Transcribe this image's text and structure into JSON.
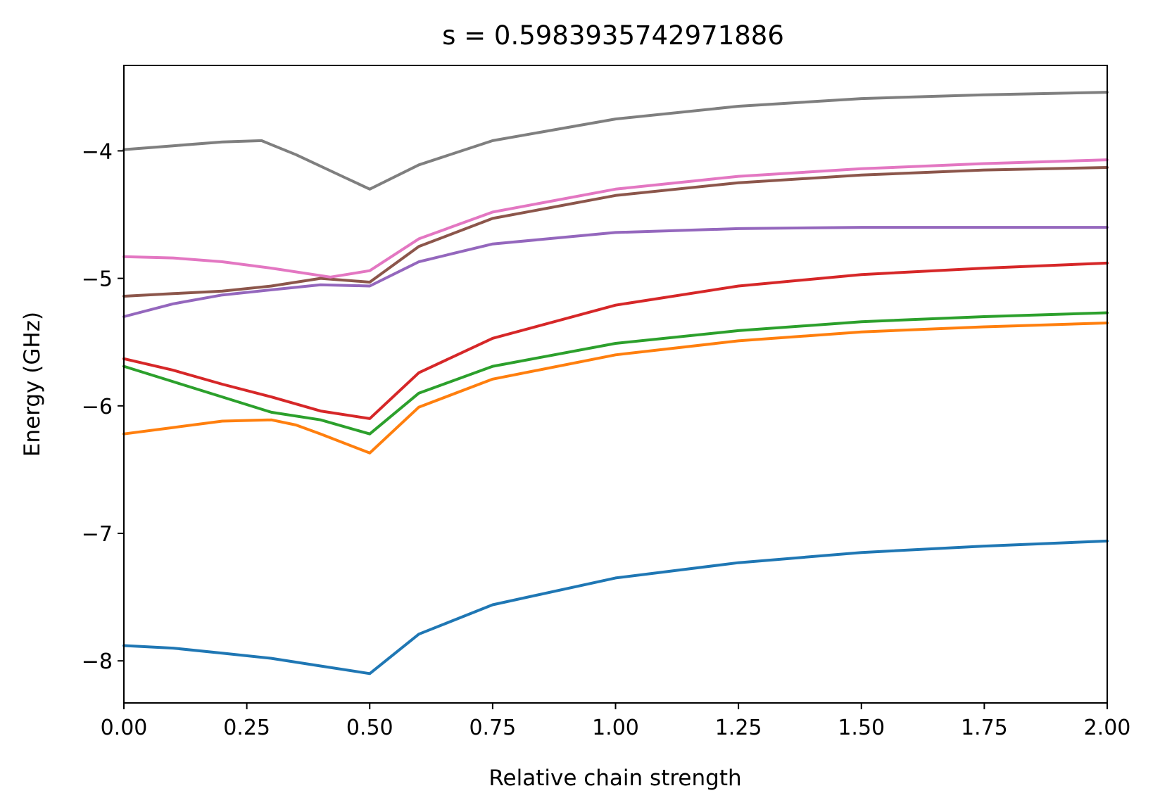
{
  "chart_data": {
    "type": "line",
    "title": "s = 0.5983935742971886",
    "xlabel": "Relative chain strength",
    "ylabel": "Energy (GHz)",
    "xlim": [
      0,
      2
    ],
    "ylim": [
      -8.33,
      -3.33
    ],
    "x_ticks": [
      0,
      0.25,
      0.5,
      0.75,
      1.0,
      1.25,
      1.5,
      1.75,
      2.0
    ],
    "x_tick_labels": [
      "0.00",
      "0.25",
      "0.50",
      "0.75",
      "1.00",
      "1.25",
      "1.50",
      "1.75",
      "2.00"
    ],
    "y_ticks": [
      -8,
      -7,
      -6,
      -5,
      -4
    ],
    "y_tick_labels": [
      "−8",
      "−7",
      "−6",
      "−5",
      "−4"
    ],
    "grid": false,
    "legend": "none",
    "series": [
      {
        "color": "#1f77b4",
        "points": [
          [
            0,
            -7.88
          ],
          [
            0.1,
            -7.9
          ],
          [
            0.2,
            -7.94
          ],
          [
            0.3,
            -7.98
          ],
          [
            0.4,
            -8.04
          ],
          [
            0.5,
            -8.1
          ],
          [
            0.6,
            -7.79
          ],
          [
            0.75,
            -7.56
          ],
          [
            1.0,
            -7.35
          ],
          [
            1.25,
            -7.23
          ],
          [
            1.5,
            -7.15
          ],
          [
            1.75,
            -7.1
          ],
          [
            2.0,
            -7.06
          ]
        ]
      },
      {
        "color": "#ff7f0e",
        "points": [
          [
            0,
            -6.22
          ],
          [
            0.1,
            -6.17
          ],
          [
            0.2,
            -6.12
          ],
          [
            0.3,
            -6.11
          ],
          [
            0.35,
            -6.15
          ],
          [
            0.4,
            -6.22
          ],
          [
            0.5,
            -6.37
          ],
          [
            0.6,
            -6.01
          ],
          [
            0.75,
            -5.79
          ],
          [
            1.0,
            -5.6
          ],
          [
            1.25,
            -5.49
          ],
          [
            1.5,
            -5.42
          ],
          [
            1.75,
            -5.38
          ],
          [
            2.0,
            -5.35
          ]
        ]
      },
      {
        "color": "#2ca02c",
        "points": [
          [
            0,
            -5.69
          ],
          [
            0.1,
            -5.81
          ],
          [
            0.2,
            -5.93
          ],
          [
            0.3,
            -6.05
          ],
          [
            0.4,
            -6.11
          ],
          [
            0.5,
            -6.22
          ],
          [
            0.6,
            -5.9
          ],
          [
            0.75,
            -5.69
          ],
          [
            1.0,
            -5.51
          ],
          [
            1.25,
            -5.41
          ],
          [
            1.5,
            -5.34
          ],
          [
            1.75,
            -5.3
          ],
          [
            2.0,
            -5.27
          ]
        ]
      },
      {
        "color": "#d62728",
        "points": [
          [
            0,
            -5.63
          ],
          [
            0.1,
            -5.72
          ],
          [
            0.2,
            -5.83
          ],
          [
            0.3,
            -5.93
          ],
          [
            0.4,
            -6.04
          ],
          [
            0.5,
            -6.1
          ],
          [
            0.6,
            -5.74
          ],
          [
            0.75,
            -5.47
          ],
          [
            1.0,
            -5.21
          ],
          [
            1.25,
            -5.06
          ],
          [
            1.5,
            -4.97
          ],
          [
            1.75,
            -4.92
          ],
          [
            2.0,
            -4.88
          ]
        ]
      },
      {
        "color": "#9467bd",
        "points": [
          [
            0,
            -5.3
          ],
          [
            0.1,
            -5.2
          ],
          [
            0.2,
            -5.13
          ],
          [
            0.3,
            -5.09
          ],
          [
            0.4,
            -5.05
          ],
          [
            0.5,
            -5.06
          ],
          [
            0.6,
            -4.87
          ],
          [
            0.75,
            -4.73
          ],
          [
            1.0,
            -4.64
          ],
          [
            1.25,
            -4.61
          ],
          [
            1.5,
            -4.6
          ],
          [
            1.75,
            -4.6
          ],
          [
            2.0,
            -4.6
          ]
        ]
      },
      {
        "color": "#8c564b",
        "points": [
          [
            0,
            -5.14
          ],
          [
            0.1,
            -5.12
          ],
          [
            0.2,
            -5.1
          ],
          [
            0.3,
            -5.06
          ],
          [
            0.4,
            -5.0
          ],
          [
            0.5,
            -5.03
          ],
          [
            0.6,
            -4.75
          ],
          [
            0.75,
            -4.53
          ],
          [
            1.0,
            -4.35
          ],
          [
            1.25,
            -4.25
          ],
          [
            1.5,
            -4.19
          ],
          [
            1.75,
            -4.15
          ],
          [
            2.0,
            -4.13
          ]
        ]
      },
      {
        "color": "#e377c2",
        "points": [
          [
            0,
            -4.83
          ],
          [
            0.1,
            -4.84
          ],
          [
            0.2,
            -4.87
          ],
          [
            0.3,
            -4.92
          ],
          [
            0.42,
            -4.99
          ],
          [
            0.5,
            -4.94
          ],
          [
            0.6,
            -4.69
          ],
          [
            0.75,
            -4.48
          ],
          [
            1.0,
            -4.3
          ],
          [
            1.25,
            -4.2
          ],
          [
            1.5,
            -4.14
          ],
          [
            1.75,
            -4.1
          ],
          [
            2.0,
            -4.07
          ]
        ]
      },
      {
        "color": "#7f7f7f",
        "points": [
          [
            0,
            -3.99
          ],
          [
            0.1,
            -3.96
          ],
          [
            0.2,
            -3.93
          ],
          [
            0.28,
            -3.92
          ],
          [
            0.35,
            -4.03
          ],
          [
            0.45,
            -4.21
          ],
          [
            0.5,
            -4.3
          ],
          [
            0.6,
            -4.11
          ],
          [
            0.75,
            -3.92
          ],
          [
            1.0,
            -3.75
          ],
          [
            1.25,
            -3.65
          ],
          [
            1.5,
            -3.59
          ],
          [
            1.75,
            -3.56
          ],
          [
            2.0,
            -3.54
          ]
        ]
      }
    ]
  }
}
